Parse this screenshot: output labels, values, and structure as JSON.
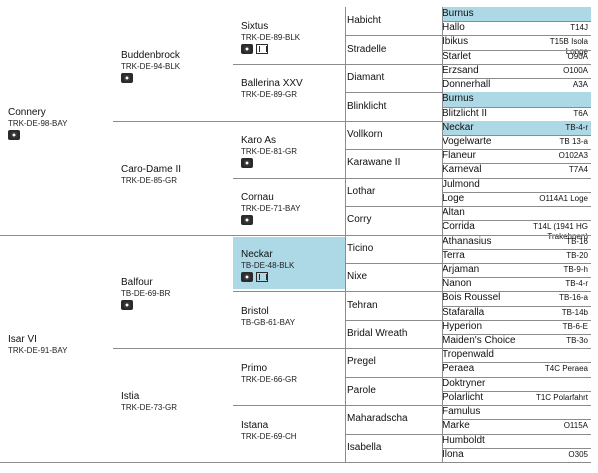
{
  "gen1": [
    {
      "name": "Connery",
      "code": "TRK-DE-98-BAY",
      "photo": true
    },
    {
      "name": "Isar VI",
      "code": "TRK-DE-91-BAY"
    }
  ],
  "gen2": [
    {
      "name": "Buddenbrock",
      "code": "TRK-DE-94-BLK",
      "photo": true
    },
    {
      "name": "Caro-Dame II",
      "code": "TRK-DE-85-GR"
    },
    {
      "name": "Balfour",
      "code": "TB-DE-69-BR",
      "photo": true
    },
    {
      "name": "Istia",
      "code": "TRK-DE-73-GR"
    }
  ],
  "gen3": [
    {
      "name": "Sixtus",
      "code": "TRK-DE-89-BLK",
      "photo": true,
      "video": true
    },
    {
      "name": "Ballerina XXV",
      "code": "TRK-DE-89-GR"
    },
    {
      "name": "Karo As",
      "code": "TRK-DE-81-GR",
      "photo": true
    },
    {
      "name": "Cornau",
      "code": "TRK-DE-71-BAY",
      "photo": true
    },
    {
      "name": "Neckar",
      "code": "TB-DE-48-BLK",
      "photo": true,
      "video": true,
      "highlight": true
    },
    {
      "name": "Bristol",
      "code": "TB-GB-61-BAY"
    },
    {
      "name": "Primo",
      "code": "TRK-DE-66-GR"
    },
    {
      "name": "Istana",
      "code": "TRK-DE-69-CH"
    }
  ],
  "gen4": [
    "Habicht",
    "Stradelle",
    "Diamant",
    "Blinklicht",
    "Vollkorn",
    "Karawane II",
    "Lothar",
    "Corry",
    "Ticino",
    "Nixe",
    "Tehran",
    "Bridal Wreath",
    "Pregel",
    "Parole",
    "Maharadscha",
    "Isabella"
  ],
  "gen5": [
    {
      "name": "Burnus",
      "code": "",
      "highlight": true
    },
    {
      "name": "Hallo",
      "code": "T14J"
    },
    {
      "name": "Ibikus",
      "code": "T15B Isola Longe"
    },
    {
      "name": "Starlet",
      "code": "O90A"
    },
    {
      "name": "Erzsand",
      "code": "O100A"
    },
    {
      "name": "Donnerhall",
      "code": "A3A"
    },
    {
      "name": "Burnus",
      "code": "",
      "highlight": true
    },
    {
      "name": "Blitzlicht II",
      "code": "T6A"
    },
    {
      "name": "Neckar",
      "code": "TB-4-r",
      "highlight": true
    },
    {
      "name": "Vogelwarte",
      "code": "TB 13-a"
    },
    {
      "name": "Flaneur",
      "code": "O102A3"
    },
    {
      "name": "Karneval",
      "code": "T7A4"
    },
    {
      "name": "Julmond",
      "code": ""
    },
    {
      "name": "Loge",
      "code": "O114A1 Loge"
    },
    {
      "name": "Altan",
      "code": ""
    },
    {
      "name": "Corrida",
      "code": "T14L (1941 HG Trakehnen)"
    },
    {
      "name": "Athanasius",
      "code": "TB-16"
    },
    {
      "name": "Terra",
      "code": "TB-20"
    },
    {
      "name": "Arjaman",
      "code": "TB-9-h"
    },
    {
      "name": "Nanon",
      "code": "TB-4-r"
    },
    {
      "name": "Bois Roussel",
      "code": "TB-16-a"
    },
    {
      "name": "Stafaralla",
      "code": "TB-14b"
    },
    {
      "name": "Hyperion",
      "code": "TB-6-E"
    },
    {
      "name": "Maiden's Choice",
      "code": "TB-3o"
    },
    {
      "name": "Tropenwald",
      "code": ""
    },
    {
      "name": "Peraea",
      "code": "T4C Peraea"
    },
    {
      "name": "Doktryner",
      "code": ""
    },
    {
      "name": "Polarlicht",
      "code": "T1C Polarfahrt"
    },
    {
      "name": "Famulus",
      "code": ""
    },
    {
      "name": "Marke",
      "code": "O115A"
    },
    {
      "name": "Humboldt",
      "code": ""
    },
    {
      "name": "Ilona",
      "code": "O305"
    }
  ]
}
